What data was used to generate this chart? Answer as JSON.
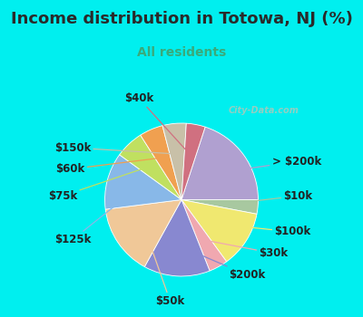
{
  "title": "Income distribution in Totowa, NJ (%)",
  "subtitle": "All residents",
  "title_color": "#2a2a2a",
  "subtitle_color": "#3aaa7a",
  "bg_cyan": "#00EFEF",
  "bg_chart": "#c8e8d8",
  "watermark": "© City-Data.com",
  "labels": [
    "> $200k",
    "$10k",
    "$100k",
    "$30k",
    "$200k",
    "$50k",
    "$125k",
    "$75k",
    "$60k",
    "$150k",
    "$40k"
  ],
  "values": [
    20,
    3,
    12,
    4,
    14,
    15,
    12,
    6,
    5,
    5,
    4
  ],
  "colors": [
    "#b0a0d0",
    "#a8c8a0",
    "#f0e870",
    "#f0a8b0",
    "#8888d0",
    "#f0c898",
    "#88b8e8",
    "#c0e060",
    "#f0a050",
    "#c8c0a8",
    "#d07080"
  ],
  "label_fontsize": 8.5,
  "title_fontsize": 13,
  "subtitle_fontsize": 10,
  "startangle": 72
}
